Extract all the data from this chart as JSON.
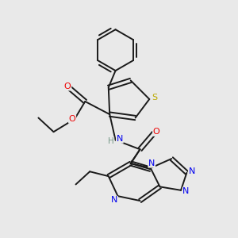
{
  "background_color": "#e9e9e9",
  "bond_color": "#1a1a1a",
  "atom_colors": {
    "N": "#0000ee",
    "O": "#ee0000",
    "S": "#bbaa00",
    "H": "#779988",
    "C": "#1a1a1a"
  },
  "figsize": [
    3.0,
    3.0
  ],
  "dpi": 100
}
